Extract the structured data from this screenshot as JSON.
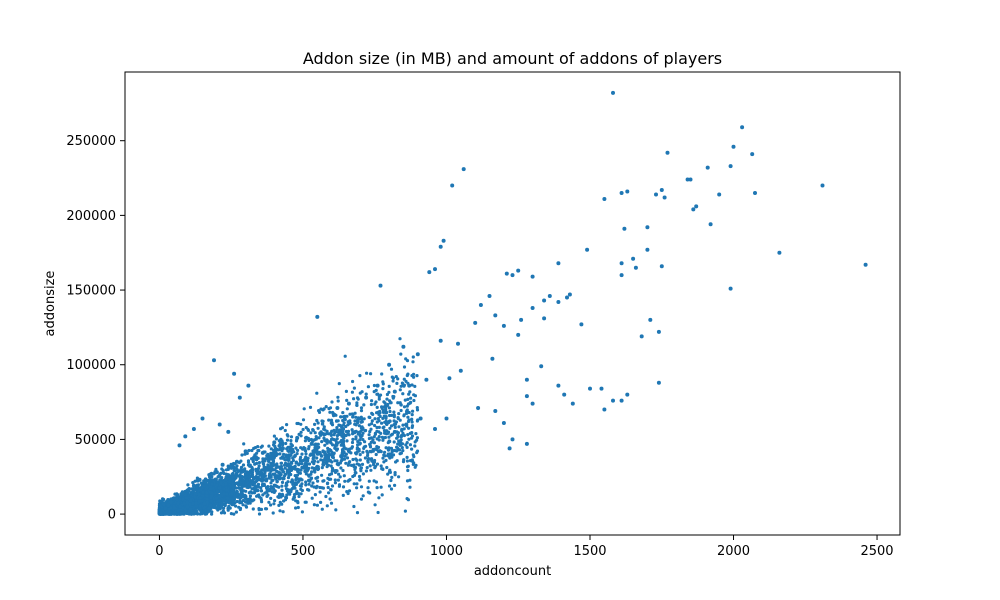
{
  "chart_data": {
    "type": "scatter",
    "title": "Addon size (in MB) and amount of addons of players",
    "xlabel": "addoncount",
    "ylabel": "addonsize",
    "xlim": [
      -120,
      2580
    ],
    "ylim": [
      -14000,
      296000
    ],
    "xticks": [
      0,
      500,
      1000,
      1500,
      2000,
      2500
    ],
    "yticks": [
      0,
      50000,
      100000,
      150000,
      200000,
      250000
    ],
    "grid": false,
    "marker_color": "#1f77b4",
    "series": [
      {
        "points": [
          [
            1580,
            282000
          ],
          [
            2030,
            259000
          ],
          [
            2000,
            246000
          ],
          [
            2065,
            241000
          ],
          [
            1770,
            242000
          ],
          [
            1910,
            232000
          ],
          [
            1990,
            233000
          ],
          [
            1060,
            231000
          ],
          [
            1610,
            215000
          ],
          [
            1630,
            216000
          ],
          [
            1550,
            211000
          ],
          [
            1020,
            220000
          ],
          [
            2310,
            220000
          ],
          [
            1840,
            224000
          ],
          [
            1850,
            224000
          ],
          [
            1730,
            214000
          ],
          [
            1750,
            217000
          ],
          [
            1760,
            212000
          ],
          [
            1950,
            214000
          ],
          [
            2075,
            215000
          ],
          [
            1870,
            206000
          ],
          [
            1860,
            204000
          ],
          [
            1920,
            194000
          ],
          [
            1700,
            192000
          ],
          [
            1620,
            191000
          ],
          [
            990,
            183000
          ],
          [
            980,
            179000
          ],
          [
            1700,
            177000
          ],
          [
            1490,
            177000
          ],
          [
            1390,
            168000
          ],
          [
            2160,
            175000
          ],
          [
            2460,
            167000
          ],
          [
            1610,
            168000
          ],
          [
            1650,
            171000
          ],
          [
            1660,
            165000
          ],
          [
            1610,
            160000
          ],
          [
            1750,
            166000
          ],
          [
            960,
            164000
          ],
          [
            940,
            162000
          ],
          [
            1210,
            161000
          ],
          [
            1250,
            163000
          ],
          [
            1230,
            160000
          ],
          [
            1300,
            159000
          ],
          [
            1990,
            151000
          ],
          [
            770,
            153000
          ],
          [
            1430,
            147000
          ],
          [
            1420,
            145000
          ],
          [
            1390,
            142000
          ],
          [
            1360,
            146000
          ],
          [
            1300,
            138000
          ],
          [
            1340,
            143000
          ],
          [
            1150,
            146000
          ],
          [
            1120,
            140000
          ],
          [
            1170,
            133000
          ],
          [
            1100,
            128000
          ],
          [
            1200,
            126000
          ],
          [
            1260,
            130000
          ],
          [
            1340,
            131000
          ],
          [
            1250,
            120000
          ],
          [
            1680,
            119000
          ],
          [
            1710,
            130000
          ],
          [
            1740,
            122000
          ],
          [
            1470,
            127000
          ],
          [
            550,
            132000
          ],
          [
            1040,
            114000
          ],
          [
            980,
            116000
          ],
          [
            900,
            107000
          ],
          [
            850,
            112000
          ],
          [
            800,
            100000
          ],
          [
            1160,
            104000
          ],
          [
            1330,
            99000
          ],
          [
            1050,
            96000
          ],
          [
            1010,
            91000
          ],
          [
            930,
            90000
          ],
          [
            870,
            86000
          ],
          [
            820,
            82000
          ],
          [
            760,
            86000
          ],
          [
            720,
            78000
          ],
          [
            660,
            74000
          ],
          [
            620,
            71000
          ],
          [
            1540,
            84000
          ],
          [
            1630,
            80000
          ],
          [
            1740,
            88000
          ],
          [
            1280,
            90000
          ],
          [
            1390,
            86000
          ],
          [
            1410,
            80000
          ],
          [
            1440,
            74000
          ],
          [
            1280,
            79000
          ],
          [
            1300,
            74000
          ],
          [
            1200,
            61000
          ],
          [
            1170,
            69000
          ],
          [
            1110,
            71000
          ],
          [
            1000,
            64000
          ],
          [
            960,
            57000
          ],
          [
            910,
            64000
          ],
          [
            860,
            60000
          ],
          [
            820,
            55000
          ],
          [
            790,
            68000
          ],
          [
            700,
            64000
          ],
          [
            640,
            57000
          ],
          [
            600,
            61000
          ],
          [
            560,
            54000
          ],
          [
            530,
            47000
          ],
          [
            480,
            51000
          ],
          [
            430,
            44000
          ],
          [
            400,
            48000
          ],
          [
            360,
            41000
          ],
          [
            330,
            38000
          ],
          [
            300,
            42000
          ],
          [
            270,
            35000
          ],
          [
            250,
            31000
          ],
          [
            220,
            33000
          ],
          [
            200,
            28000
          ],
          [
            180,
            25000
          ],
          [
            160,
            21000
          ],
          [
            140,
            23000
          ],
          [
            120,
            19000
          ],
          [
            100,
            16000
          ],
          [
            80,
            14000
          ],
          [
            60,
            10000
          ],
          [
            40,
            8000
          ],
          [
            20,
            4000
          ],
          [
            10,
            2000
          ],
          [
            5,
            1000
          ],
          [
            30,
            6000
          ],
          [
            190,
            103000
          ],
          [
            260,
            94000
          ],
          [
            310,
            86000
          ],
          [
            280,
            78000
          ],
          [
            150,
            64000
          ],
          [
            120,
            57000
          ],
          [
            90,
            52000
          ],
          [
            70,
            46000
          ],
          [
            210,
            60000
          ],
          [
            240,
            55000
          ],
          [
            1230,
            50000
          ],
          [
            1280,
            47000
          ],
          [
            1220,
            44000
          ],
          [
            1500,
            84000
          ],
          [
            1580,
            76000
          ],
          [
            1550,
            70000
          ],
          [
            1610,
            76000
          ]
        ]
      }
    ]
  }
}
